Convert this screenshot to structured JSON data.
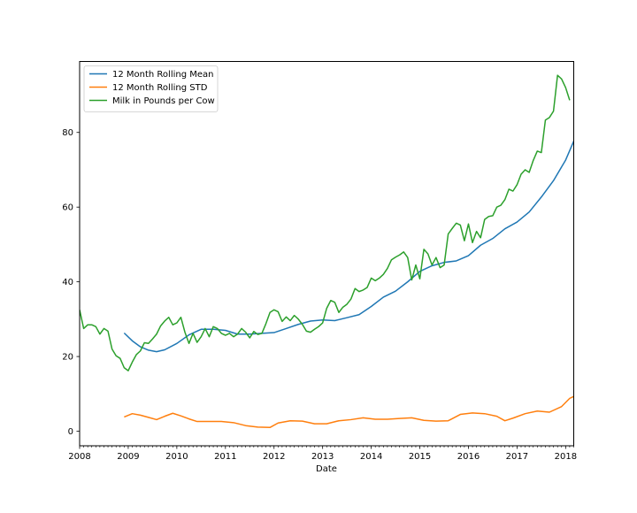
{
  "chart_data": {
    "type": "line",
    "xlabel": "Date",
    "ylabel": "",
    "x_ticks": [
      "2008",
      "2009",
      "2010",
      "2011",
      "2012",
      "2013",
      "2014",
      "2015",
      "2016",
      "2017",
      "2018"
    ],
    "y_ticks": [
      "0",
      "20",
      "40",
      "60",
      "80"
    ],
    "xlim": [
      "2008-01",
      "2018-03"
    ],
    "ylim": [
      -3.9,
      99
    ],
    "legend_position": "top-left",
    "grid": false,
    "series": [
      {
        "name": "12 Month Rolling Mean",
        "color": "#1f77b4",
        "points": [
          [
            "2008-12",
            26.3
          ],
          [
            "2009-02",
            24.2
          ],
          [
            "2009-04",
            22.6
          ],
          [
            "2009-06",
            21.7
          ],
          [
            "2009-08",
            21.3
          ],
          [
            "2009-10",
            21.8
          ],
          [
            "2010-01",
            23.5
          ],
          [
            "2010-04",
            25.8
          ],
          [
            "2010-07",
            27.3
          ],
          [
            "2010-10",
            27.3
          ],
          [
            "2011-01",
            27.0
          ],
          [
            "2011-04",
            26.0
          ],
          [
            "2011-07",
            26.0
          ],
          [
            "2011-10",
            26.2
          ],
          [
            "2012-01",
            26.4
          ],
          [
            "2012-04",
            27.5
          ],
          [
            "2012-07",
            28.6
          ],
          [
            "2012-10",
            29.5
          ],
          [
            "2013-01",
            29.8
          ],
          [
            "2013-04",
            29.6
          ],
          [
            "2013-07",
            30.4
          ],
          [
            "2013-10",
            31.2
          ],
          [
            "2014-01",
            33.4
          ],
          [
            "2014-04",
            35.9
          ],
          [
            "2014-07",
            37.5
          ],
          [
            "2014-10",
            40.0
          ],
          [
            "2015-01",
            42.8
          ],
          [
            "2015-04",
            44.3
          ],
          [
            "2015-07",
            45.2
          ],
          [
            "2015-10",
            45.6
          ],
          [
            "2016-01",
            47.0
          ],
          [
            "2016-04",
            49.8
          ],
          [
            "2016-07",
            51.6
          ],
          [
            "2016-10",
            54.2
          ],
          [
            "2017-01",
            56.0
          ],
          [
            "2017-04",
            58.7
          ],
          [
            "2017-07",
            62.7
          ],
          [
            "2017-10",
            67.1
          ],
          [
            "2018-01",
            72.6
          ],
          [
            "2018-04",
            80.2
          ]
        ]
      },
      {
        "name": "12 Month Rolling STD",
        "color": "#ff7f0e",
        "points": [
          [
            "2008-12",
            3.8
          ],
          [
            "2009-02",
            4.7
          ],
          [
            "2009-04",
            4.3
          ],
          [
            "2009-06",
            3.7
          ],
          [
            "2009-08",
            3.1
          ],
          [
            "2009-10",
            4.0
          ],
          [
            "2009-12",
            4.8
          ],
          [
            "2010-02",
            4.1
          ],
          [
            "2010-04",
            3.3
          ],
          [
            "2010-06",
            2.6
          ],
          [
            "2010-09",
            2.6
          ],
          [
            "2010-12",
            2.6
          ],
          [
            "2011-03",
            2.3
          ],
          [
            "2011-06",
            1.5
          ],
          [
            "2011-09",
            1.1
          ],
          [
            "2011-12",
            1.0
          ],
          [
            "2012-02",
            2.2
          ],
          [
            "2012-05",
            2.8
          ],
          [
            "2012-08",
            2.7
          ],
          [
            "2012-11",
            2.0
          ],
          [
            "2013-02",
            2.0
          ],
          [
            "2013-05",
            2.8
          ],
          [
            "2013-08",
            3.1
          ],
          [
            "2013-11",
            3.6
          ],
          [
            "2014-02",
            3.2
          ],
          [
            "2014-05",
            3.2
          ],
          [
            "2014-08",
            3.4
          ],
          [
            "2014-11",
            3.6
          ],
          [
            "2015-02",
            2.9
          ],
          [
            "2015-05",
            2.7
          ],
          [
            "2015-08",
            2.8
          ],
          [
            "2015-11",
            4.5
          ],
          [
            "2016-02",
            4.9
          ],
          [
            "2016-05",
            4.7
          ],
          [
            "2016-08",
            4.0
          ],
          [
            "2016-10",
            2.8
          ],
          [
            "2016-12",
            3.5
          ],
          [
            "2017-03",
            4.7
          ],
          [
            "2017-06",
            5.4
          ],
          [
            "2017-09",
            5.1
          ],
          [
            "2017-12",
            6.6
          ],
          [
            "2018-02",
            8.8
          ],
          [
            "2018-04",
            9.8
          ]
        ]
      },
      {
        "name": "Milk in Pounds per Cow",
        "color": "#2ca02c",
        "points": [
          [
            "2008-01",
            32.5
          ],
          [
            "2008-02",
            27.5
          ],
          [
            "2008-03",
            28.5
          ],
          [
            "2008-04",
            28.5
          ],
          [
            "2008-05",
            28.0
          ],
          [
            "2008-06",
            26.0
          ],
          [
            "2008-07",
            27.5
          ],
          [
            "2008-08",
            26.8
          ],
          [
            "2008-09",
            22.0
          ],
          [
            "2008-10",
            20.2
          ],
          [
            "2008-11",
            19.5
          ],
          [
            "2008-12",
            17.0
          ],
          [
            "2009-01",
            16.2
          ],
          [
            "2009-02",
            18.5
          ],
          [
            "2009-03",
            20.5
          ],
          [
            "2009-04",
            21.5
          ],
          [
            "2009-05",
            23.7
          ],
          [
            "2009-06",
            23.5
          ],
          [
            "2009-07",
            24.7
          ],
          [
            "2009-08",
            26.0
          ],
          [
            "2009-09",
            28.2
          ],
          [
            "2009-10",
            29.5
          ],
          [
            "2009-11",
            30.5
          ],
          [
            "2009-12",
            28.5
          ],
          [
            "2010-01",
            29.0
          ],
          [
            "2010-02",
            30.5
          ],
          [
            "2010-03",
            26.5
          ],
          [
            "2010-04",
            23.5
          ],
          [
            "2010-05",
            26.2
          ],
          [
            "2010-06",
            23.8
          ],
          [
            "2010-07",
            25.3
          ],
          [
            "2010-08",
            27.5
          ],
          [
            "2010-09",
            25.3
          ],
          [
            "2010-10",
            28.0
          ],
          [
            "2010-11",
            27.5
          ],
          [
            "2010-12",
            26.2
          ],
          [
            "2011-01",
            25.7
          ],
          [
            "2011-02",
            26.2
          ],
          [
            "2011-03",
            25.3
          ],
          [
            "2011-04",
            26.0
          ],
          [
            "2011-05",
            27.5
          ],
          [
            "2011-06",
            26.5
          ],
          [
            "2011-07",
            25.0
          ],
          [
            "2011-08",
            26.7
          ],
          [
            "2011-09",
            25.9
          ],
          [
            "2011-10",
            26.2
          ],
          [
            "2011-11",
            28.8
          ],
          [
            "2011-12",
            31.8
          ],
          [
            "2012-01",
            32.5
          ],
          [
            "2012-02",
            32.0
          ],
          [
            "2012-03",
            29.4
          ],
          [
            "2012-04",
            30.6
          ],
          [
            "2012-05",
            29.6
          ],
          [
            "2012-06",
            31.0
          ],
          [
            "2012-07",
            30.0
          ],
          [
            "2012-08",
            28.6
          ],
          [
            "2012-09",
            26.8
          ],
          [
            "2012-10",
            26.5
          ],
          [
            "2012-11",
            27.3
          ],
          [
            "2012-12",
            28.0
          ],
          [
            "2013-01",
            29.0
          ],
          [
            "2013-02",
            32.9
          ],
          [
            "2013-03",
            35.0
          ],
          [
            "2013-04",
            34.5
          ],
          [
            "2013-05",
            31.8
          ],
          [
            "2013-06",
            33.2
          ],
          [
            "2013-07",
            34.0
          ],
          [
            "2013-08",
            35.4
          ],
          [
            "2013-09",
            38.2
          ],
          [
            "2013-10",
            37.4
          ],
          [
            "2013-11",
            37.8
          ],
          [
            "2013-12",
            38.5
          ],
          [
            "2014-01",
            41.0
          ],
          [
            "2014-02",
            40.3
          ],
          [
            "2014-03",
            41.0
          ],
          [
            "2014-04",
            42.0
          ],
          [
            "2014-05",
            43.6
          ],
          [
            "2014-06",
            45.9
          ],
          [
            "2014-07",
            46.6
          ],
          [
            "2014-08",
            47.2
          ],
          [
            "2014-09",
            48.0
          ],
          [
            "2014-10",
            46.5
          ],
          [
            "2014-11",
            40.5
          ],
          [
            "2014-12",
            44.5
          ],
          [
            "2015-01",
            40.8
          ],
          [
            "2015-02",
            48.7
          ],
          [
            "2015-03",
            47.5
          ],
          [
            "2015-04",
            44.5
          ],
          [
            "2015-05",
            46.5
          ],
          [
            "2015-06",
            43.8
          ],
          [
            "2015-07",
            44.5
          ],
          [
            "2015-08",
            52.8
          ],
          [
            "2015-09",
            54.3
          ],
          [
            "2015-10",
            55.7
          ],
          [
            "2015-11",
            55.2
          ],
          [
            "2015-12",
            51.0
          ],
          [
            "2016-01",
            55.5
          ],
          [
            "2016-02",
            50.5
          ],
          [
            "2016-03",
            53.5
          ],
          [
            "2016-04",
            51.8
          ],
          [
            "2016-05",
            56.7
          ],
          [
            "2016-06",
            57.5
          ],
          [
            "2016-07",
            57.7
          ],
          [
            "2016-08",
            60.0
          ],
          [
            "2016-09",
            60.5
          ],
          [
            "2016-10",
            62.0
          ],
          [
            "2016-11",
            64.8
          ],
          [
            "2016-12",
            64.3
          ],
          [
            "2017-01",
            66.0
          ],
          [
            "2017-02",
            68.8
          ],
          [
            "2017-03",
            70.0
          ],
          [
            "2017-04",
            69.3
          ],
          [
            "2017-05",
            72.5
          ],
          [
            "2017-06",
            75.0
          ],
          [
            "2017-07",
            74.6
          ],
          [
            "2017-08",
            83.3
          ],
          [
            "2017-09",
            84.0
          ],
          [
            "2017-10",
            85.7
          ],
          [
            "2017-11",
            95.3
          ],
          [
            "2017-12",
            94.3
          ],
          [
            "2018-01",
            92.0
          ],
          [
            "2018-02",
            88.6
          ]
        ]
      }
    ]
  }
}
